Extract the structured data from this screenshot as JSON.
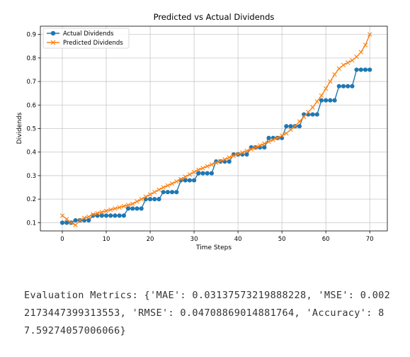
{
  "chart_data": {
    "type": "line",
    "title": "Predicted vs Actual Dividends",
    "xlabel": "Time Steps",
    "ylabel": "Dividends",
    "xlim": [
      -5,
      74
    ],
    "ylim": [
      0.065,
      0.935
    ],
    "xticks": [
      0,
      10,
      20,
      30,
      40,
      50,
      60,
      70
    ],
    "yticks": [
      0.1,
      0.2,
      0.3,
      0.4,
      0.5,
      0.6,
      0.7,
      0.8,
      0.9
    ],
    "grid": true,
    "legend_position": "top-left",
    "x": [
      0,
      1,
      2,
      3,
      4,
      5,
      6,
      7,
      8,
      9,
      10,
      11,
      12,
      13,
      14,
      15,
      16,
      17,
      18,
      19,
      20,
      21,
      22,
      23,
      24,
      25,
      26,
      27,
      28,
      29,
      30,
      31,
      32,
      33,
      34,
      35,
      36,
      37,
      38,
      39,
      40,
      41,
      42,
      43,
      44,
      45,
      46,
      47,
      48,
      49,
      50,
      51,
      52,
      53,
      54,
      55,
      56,
      57,
      58,
      59,
      60,
      61,
      62,
      63,
      64,
      65,
      66,
      67,
      68,
      69,
      70
    ],
    "series": [
      {
        "name": "Actual Dividends",
        "color": "#1f77b4",
        "marker": "circle",
        "values": [
          0.1,
          0.1,
          0.1,
          0.11,
          0.11,
          0.11,
          0.11,
          0.13,
          0.13,
          0.13,
          0.13,
          0.13,
          0.13,
          0.13,
          0.13,
          0.16,
          0.16,
          0.16,
          0.16,
          0.2,
          0.2,
          0.2,
          0.2,
          0.23,
          0.23,
          0.23,
          0.23,
          0.28,
          0.28,
          0.28,
          0.28,
          0.31,
          0.31,
          0.31,
          0.31,
          0.36,
          0.36,
          0.36,
          0.36,
          0.39,
          0.39,
          0.39,
          0.39,
          0.42,
          0.42,
          0.42,
          0.42,
          0.46,
          0.46,
          0.46,
          0.46,
          0.51,
          0.51,
          0.51,
          0.51,
          0.56,
          0.56,
          0.56,
          0.56,
          0.62,
          0.62,
          0.62,
          0.62,
          0.68,
          0.68,
          0.68,
          0.68,
          0.75,
          0.75,
          0.75,
          0.75
        ]
      },
      {
        "name": "Predicted Dividends",
        "color": "#ff7f0e",
        "marker": "x",
        "values": [
          0.13,
          0.115,
          0.1,
          0.09,
          0.11,
          0.12,
          0.125,
          0.135,
          0.14,
          0.145,
          0.15,
          0.155,
          0.16,
          0.165,
          0.17,
          0.175,
          0.18,
          0.19,
          0.2,
          0.21,
          0.22,
          0.23,
          0.24,
          0.25,
          0.258,
          0.266,
          0.275,
          0.285,
          0.295,
          0.305,
          0.315,
          0.325,
          0.332,
          0.34,
          0.347,
          0.355,
          0.362,
          0.369,
          0.377,
          0.384,
          0.391,
          0.398,
          0.405,
          0.412,
          0.42,
          0.428,
          0.436,
          0.444,
          0.452,
          0.46,
          0.47,
          0.48,
          0.495,
          0.51,
          0.53,
          0.55,
          0.57,
          0.59,
          0.615,
          0.64,
          0.67,
          0.7,
          0.73,
          0.755,
          0.77,
          0.78,
          0.79,
          0.805,
          0.825,
          0.855,
          0.9
        ]
      }
    ]
  },
  "output": {
    "text": "Evaluation Metrics: {'MAE': 0.03137573219888228, 'MSE': 0.0022173447399313553, 'RMSE': 0.04708869014881764, 'Accuracy': 87.59274057006066}"
  }
}
